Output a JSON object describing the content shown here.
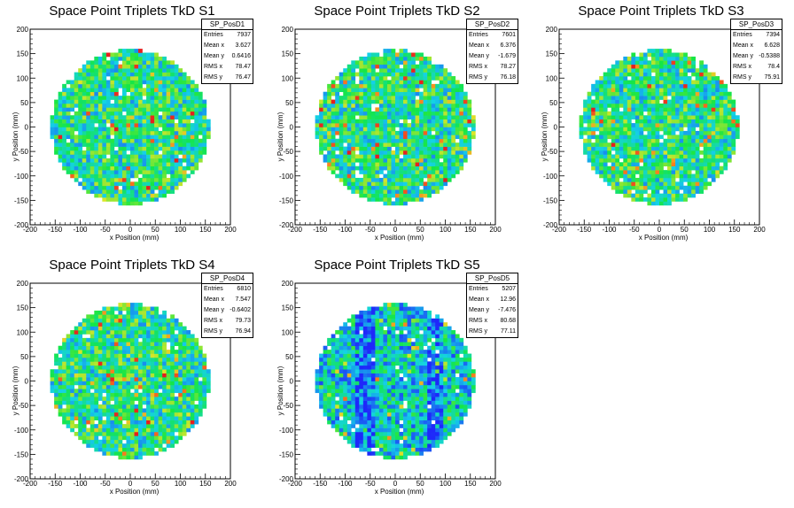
{
  "chart_data": [
    {
      "type": "heatmap",
      "title": "Space Point Triplets TkD S1",
      "xlabel": "x Position (mm)",
      "ylabel": "y Position (mm)",
      "xlim": [
        -200,
        200
      ],
      "ylim": [
        -200,
        200
      ],
      "xticks": [
        "-200",
        "-150",
        "-100",
        "-50",
        "0",
        "50",
        "100",
        "150",
        "200"
      ],
      "yticks": [
        "-200",
        "-150",
        "-100",
        "-50",
        "0",
        "50",
        "100",
        "150",
        "200"
      ],
      "radius": 160,
      "seed": 11,
      "sparse": 0,
      "stats": {
        "name": "SP_PosD1",
        "rows": [
          {
            "label": "Entries",
            "value": "7937"
          },
          {
            "label": "Mean x",
            "value": "3.627"
          },
          {
            "label": "Mean y",
            "value": "0.6416"
          },
          {
            "label": "RMS x",
            "value": "78.47"
          },
          {
            "label": "RMS y",
            "value": "76.47"
          }
        ]
      }
    },
    {
      "type": "heatmap",
      "title": "Space Point Triplets TkD S2",
      "xlabel": "x Position (mm)",
      "ylabel": "y Position (mm)",
      "xlim": [
        -200,
        200
      ],
      "ylim": [
        -200,
        200
      ],
      "xticks": [
        "-200",
        "-150",
        "-100",
        "-50",
        "0",
        "50",
        "100",
        "150",
        "200"
      ],
      "yticks": [
        "-200",
        "-150",
        "-100",
        "-50",
        "0",
        "50",
        "100",
        "150",
        "200"
      ],
      "radius": 160,
      "seed": 23,
      "sparse": 0,
      "stats": {
        "name": "SP_PosD2",
        "rows": [
          {
            "label": "Entries",
            "value": "7601"
          },
          {
            "label": "Mean x",
            "value": "6.376"
          },
          {
            "label": "Mean y",
            "value": "-1.679"
          },
          {
            "label": "RMS x",
            "value": "78.27"
          },
          {
            "label": "RMS y",
            "value": "76.18"
          }
        ]
      }
    },
    {
      "type": "heatmap",
      "title": "Space Point Triplets TkD S3",
      "xlabel": "x Position (mm)",
      "ylabel": "y Position (mm)",
      "xlim": [
        -200,
        200
      ],
      "ylim": [
        -200,
        200
      ],
      "xticks": [
        "-200",
        "-150",
        "-100",
        "-50",
        "0",
        "50",
        "100",
        "150",
        "200"
      ],
      "yticks": [
        "-200",
        "-150",
        "-100",
        "-50",
        "0",
        "50",
        "100",
        "150",
        "200"
      ],
      "radius": 160,
      "seed": 37,
      "sparse": 0,
      "stats": {
        "name": "SP_PosD3",
        "rows": [
          {
            "label": "Entries",
            "value": "7394"
          },
          {
            "label": "Mean x",
            "value": "6.628"
          },
          {
            "label": "Mean y",
            "value": "-0.5388"
          },
          {
            "label": "RMS x",
            "value": "78.4"
          },
          {
            "label": "RMS y",
            "value": "75.91"
          }
        ]
      }
    },
    {
      "type": "heatmap",
      "title": "Space Point Triplets TkD S4",
      "xlabel": "x Position (mm)",
      "ylabel": "y Position (mm)",
      "xlim": [
        -200,
        200
      ],
      "ylim": [
        -200,
        200
      ],
      "xticks": [
        "-200",
        "-150",
        "-100",
        "-50",
        "0",
        "50",
        "100",
        "150",
        "200"
      ],
      "yticks": [
        "-200",
        "-150",
        "-100",
        "-50",
        "0",
        "50",
        "100",
        "150",
        "200"
      ],
      "radius": 160,
      "seed": 41,
      "sparse": 0,
      "stats": {
        "name": "SP_PosD4",
        "rows": [
          {
            "label": "Entries",
            "value": "6810"
          },
          {
            "label": "Mean x",
            "value": "7.547"
          },
          {
            "label": "Mean y",
            "value": "-0.6402"
          },
          {
            "label": "RMS x",
            "value": "79.73"
          },
          {
            "label": "RMS y",
            "value": "76.94"
          }
        ]
      }
    },
    {
      "type": "heatmap",
      "title": "Space Point Triplets TkD S5",
      "xlabel": "x Position (mm)",
      "ylabel": "y Position (mm)",
      "xlim": [
        -200,
        200
      ],
      "ylim": [
        -200,
        200
      ],
      "xticks": [
        "-200",
        "-150",
        "-100",
        "-50",
        "0",
        "50",
        "100",
        "150",
        "200"
      ],
      "yticks": [
        "-200",
        "-150",
        "-100",
        "-50",
        "0",
        "50",
        "100",
        "150",
        "200"
      ],
      "radius": 160,
      "seed": 53,
      "sparse": 1,
      "stats": {
        "name": "SP_PosD5",
        "rows": [
          {
            "label": "Entries",
            "value": "5207"
          },
          {
            "label": "Mean x",
            "value": "12.96"
          },
          {
            "label": "Mean y",
            "value": "-7.476"
          },
          {
            "label": "RMS x",
            "value": "80.68"
          },
          {
            "label": "RMS y",
            "value": "77.11"
          }
        ]
      }
    }
  ]
}
